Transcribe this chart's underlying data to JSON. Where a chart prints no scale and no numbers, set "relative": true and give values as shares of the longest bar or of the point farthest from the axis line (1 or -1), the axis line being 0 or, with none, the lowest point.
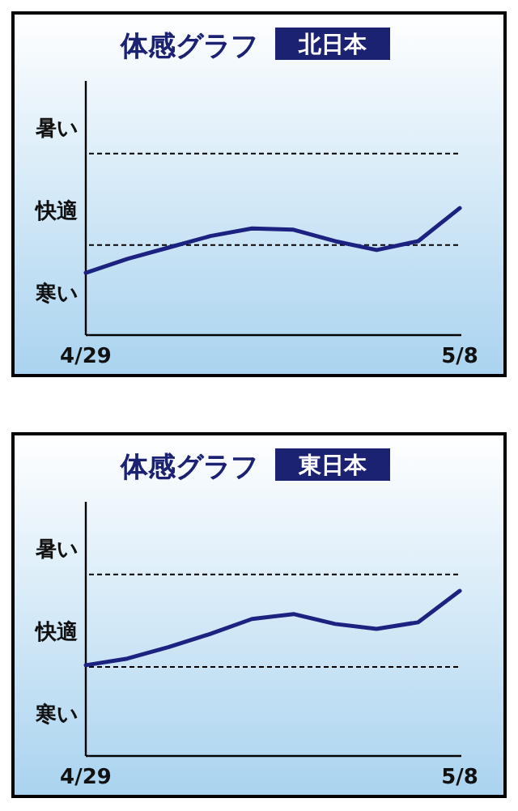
{
  "chart_data": [
    {
      "type": "line",
      "title": "体感グラフ",
      "subtitle": "北日本",
      "categories": [
        "4/29",
        null,
        null,
        null,
        null,
        null,
        null,
        null,
        null,
        "5/8"
      ],
      "relative": true,
      "series": [
        {
          "color": "#1c2280",
          "values": [
            0.49,
            0.6,
            0.69,
            0.78,
            0.84,
            0.83,
            0.74,
            0.67,
            0.74,
            1.0
          ]
        }
      ],
      "annotations": [
        "暑い",
        "快適",
        "寒い"
      ],
      "ref_lines": [
        {
          "axis": "y",
          "value": 1.43,
          "line_style": "dashed",
          "color": "#000000"
        },
        {
          "axis": "y",
          "value": 0.71,
          "line_style": "dashed",
          "color": "#000000"
        }
      ],
      "marker": "none",
      "line_style": "solid"
    },
    {
      "type": "line",
      "title": "体感グラフ",
      "subtitle": "東日本",
      "categories": [
        "4/29",
        null,
        null,
        null,
        null,
        null,
        null,
        null,
        null,
        "5/8"
      ],
      "relative": true,
      "series": [
        {
          "color": "#1c2280",
          "values": [
            0.55,
            0.59,
            0.66,
            0.74,
            0.83,
            0.86,
            0.8,
            0.77,
            0.81,
            1.0
          ]
        }
      ],
      "annotations": [
        "暑い",
        "快適",
        "寒い"
      ],
      "ref_lines": [
        {
          "axis": "y",
          "value": 1.1,
          "line_style": "dashed",
          "color": "#000000"
        },
        {
          "axis": "y",
          "value": 0.54,
          "line_style": "dashed",
          "color": "#000000"
        }
      ],
      "marker": "none",
      "line_style": "solid"
    }
  ]
}
